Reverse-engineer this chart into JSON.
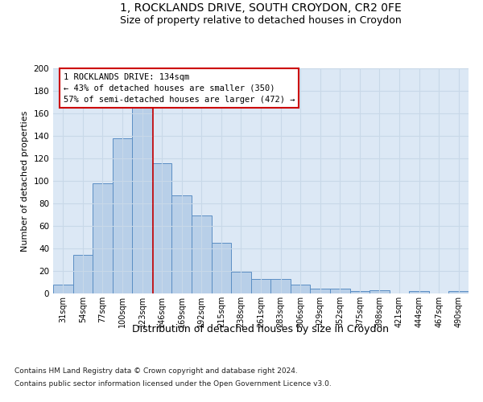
{
  "title1": "1, ROCKLANDS DRIVE, SOUTH CROYDON, CR2 0FE",
  "title2": "Size of property relative to detached houses in Croydon",
  "xlabel": "Distribution of detached houses by size in Croydon",
  "ylabel": "Number of detached properties",
  "footnote1": "Contains HM Land Registry data © Crown copyright and database right 2024.",
  "footnote2": "Contains public sector information licensed under the Open Government Licence v3.0.",
  "bar_labels": [
    "31sqm",
    "54sqm",
    "77sqm",
    "100sqm",
    "123sqm",
    "146sqm",
    "169sqm",
    "192sqm",
    "215sqm",
    "238sqm",
    "261sqm",
    "283sqm",
    "306sqm",
    "329sqm",
    "352sqm",
    "375sqm",
    "398sqm",
    "421sqm",
    "444sqm",
    "467sqm",
    "490sqm"
  ],
  "bar_values": [
    8,
    34,
    98,
    138,
    165,
    116,
    87,
    69,
    45,
    19,
    13,
    13,
    8,
    4,
    4,
    2,
    3,
    0,
    2,
    0,
    2
  ],
  "bar_color": "#b8cfe8",
  "bar_edge_color": "#5b8ec4",
  "vline_x_index": 4.55,
  "vline_color": "#cc0000",
  "annotation_text_line1": "1 ROCKLANDS DRIVE: 134sqm",
  "annotation_text_line2": "← 43% of detached houses are smaller (350)",
  "annotation_text_line3": "57% of semi-detached houses are larger (472) →",
  "annotation_box_color": "#ffffff",
  "annotation_box_edge": "#cc0000",
  "ylim": [
    0,
    200
  ],
  "yticks": [
    0,
    20,
    40,
    60,
    80,
    100,
    120,
    140,
    160,
    180,
    200
  ],
  "grid_color": "#c8d8e8",
  "bg_color": "#dce8f5",
  "fig_bg_color": "#ffffff",
  "title1_fontsize": 10,
  "title2_fontsize": 9,
  "ylabel_fontsize": 8,
  "xlabel_fontsize": 9,
  "tick_fontsize": 7,
  "footnote_fontsize": 6.5,
  "annotation_fontsize": 7.5
}
